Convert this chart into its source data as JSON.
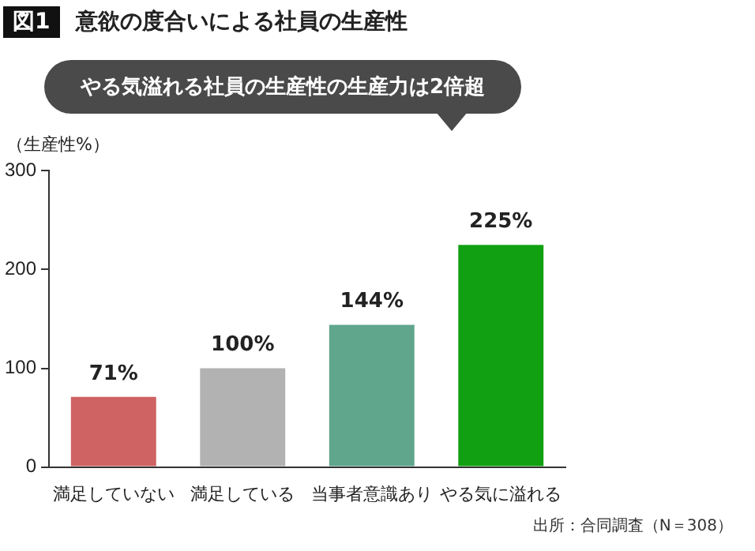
{
  "chart_data": {
    "type": "bar",
    "title": "意欲の度合いによる社員の生産性",
    "subtitle": "やる気溢れる社員の生産性の生産力は2倍超",
    "ylabel": "（生産性%）",
    "annotations": [
      "図1",
      "出所：合同調査（N＝308）"
    ],
    "categories": [
      "満足していない",
      "満足している",
      "当事者意識あり",
      "やる気に溢れる"
    ],
    "values": [
      71,
      100,
      144,
      225
    ],
    "value_labels": [
      "71%",
      "100%",
      "144%",
      "225%"
    ],
    "colors": [
      "#cf6262",
      "#b2b2b2",
      "#5fa68c",
      "#11a011"
    ],
    "ylim": [
      0,
      300
    ],
    "yticks": [
      0,
      100,
      200,
      300
    ]
  }
}
